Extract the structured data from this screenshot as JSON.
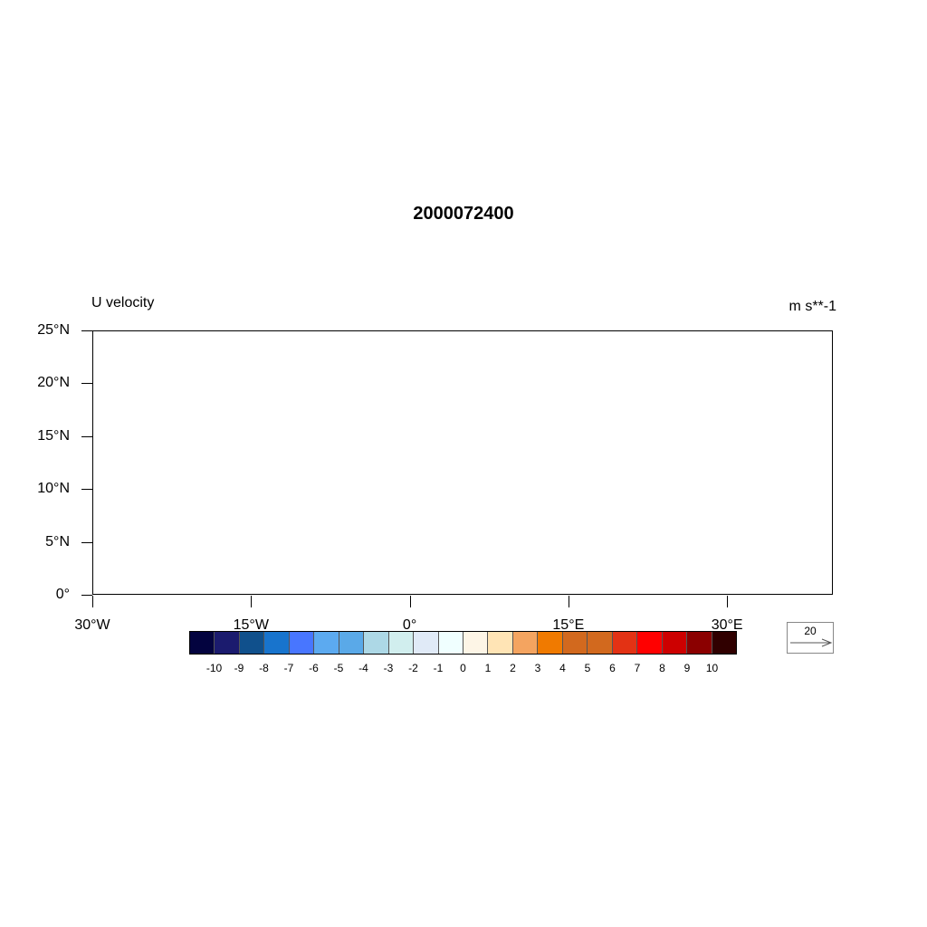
{
  "title": "2000072400",
  "left_string": "U velocity",
  "right_string": "m s**-1",
  "map": {
    "lat_range": [
      0,
      25
    ],
    "lon_range": [
      -30,
      40
    ],
    "y_ticks": [
      {
        "value": 25,
        "label": "25°N"
      },
      {
        "value": 20,
        "label": "20°N"
      },
      {
        "value": 15,
        "label": "15°N"
      },
      {
        "value": 10,
        "label": "10°N"
      },
      {
        "value": 5,
        "label": "5°N"
      },
      {
        "value": 0,
        "label": "0°"
      }
    ],
    "x_ticks": [
      {
        "value": -30,
        "label": "30°W"
      },
      {
        "value": -15,
        "label": "15°W"
      },
      {
        "value": 0,
        "label": "0°"
      },
      {
        "value": 15,
        "label": "15°E"
      },
      {
        "value": 30,
        "label": "30°E"
      }
    ]
  },
  "colorbar": {
    "labels": [
      "-10",
      "-9",
      "-8",
      "-7",
      "-6",
      "-5",
      "-4",
      "-3",
      "-2",
      "-1",
      "0",
      "1",
      "2",
      "3",
      "4",
      "5",
      "6",
      "7",
      "8",
      "9",
      "10"
    ],
    "colors": [
      "#03033f",
      "#1b1b6e",
      "#10508c",
      "#1874cd",
      "#4876ff",
      "#5caaf0",
      "#5aa9e8",
      "#add8e6",
      "#d1eeee",
      "#e0eaf7",
      "#f0ffff",
      "#fdf5e6",
      "#ffe4b5",
      "#f4a460",
      "#f07a00",
      "#d2691e",
      "#d2691e",
      "#e33214",
      "#ff0000",
      "#cd0000",
      "#8b0000",
      "#300000"
    ]
  },
  "reference_vector": {
    "label": "20"
  }
}
